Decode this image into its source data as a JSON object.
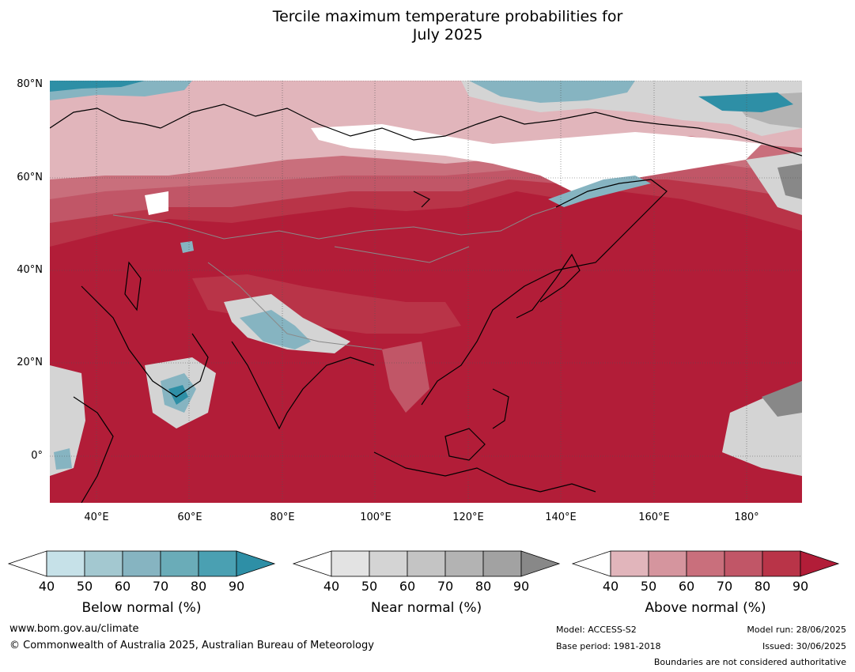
{
  "title_line1": "Tercile maximum temperature probabilities for",
  "title_line2": "July 2025",
  "latitude_labels": [
    "80°N",
    "60°N",
    "40°N",
    "20°N",
    "0°"
  ],
  "longitude_labels": [
    "40°E",
    "60°E",
    "80°E",
    "100°E",
    "120°E",
    "140°E",
    "160°E",
    "180°"
  ],
  "colorbars": [
    {
      "label": "Below normal (%)",
      "ticks": [
        "40",
        "50",
        "60",
        "70",
        "80",
        "90"
      ],
      "colors": [
        "#ffffff",
        "#c6e1e8",
        "#a3c8d0",
        "#86b4c1",
        "#6aacb8",
        "#4aa0b2",
        "#2e8fa6"
      ]
    },
    {
      "label": "Near normal (%)",
      "ticks": [
        "40",
        "50",
        "60",
        "70",
        "80",
        "90"
      ],
      "colors": [
        "#ffffff",
        "#e3e3e3",
        "#d4d4d4",
        "#c4c4c4",
        "#b3b3b3",
        "#a2a2a2",
        "#888888"
      ]
    },
    {
      "label": "Above normal (%)",
      "ticks": [
        "40",
        "50",
        "60",
        "70",
        "80",
        "90"
      ],
      "colors": [
        "#ffffff",
        "#e1b5bb",
        "#d5959e",
        "#c96f7c",
        "#c15667",
        "#b93448",
        "#b21d38"
      ]
    }
  ],
  "map_colors": {
    "above90": "#b21d38",
    "above80": "#b93448",
    "above70": "#c15667",
    "above60": "#c96f7c",
    "above50": "#d5959e",
    "above40": "#e1b5bb",
    "white": "#ffffff",
    "near50": "#d4d4d4",
    "near70": "#b3b3b3",
    "near90": "#888888",
    "below50": "#c6e1e8",
    "below70": "#86b4c1",
    "below90": "#2e8fa6",
    "coast": "#000000",
    "border": "#8a8a8a",
    "grid": "#555555"
  },
  "footer": {
    "website": "www.bom.gov.au/climate",
    "copyright": "© Commonwealth of Australia 2025, Australian Bureau of Meteorology",
    "model": "Model: ACCESS-S2",
    "base_period": "Base period: 1981-2018",
    "model_run": "Model run: 28/06/2025",
    "issued": "Issued: 30/06/2025",
    "disclaimer": "Boundaries are not considered authoritative"
  }
}
